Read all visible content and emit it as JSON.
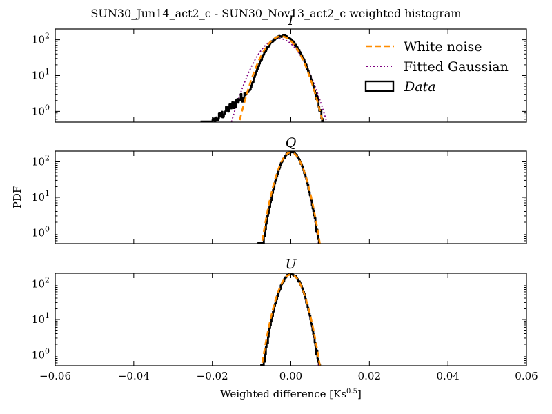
{
  "figure": {
    "suptitle": "SUN30_Jun14_act2_c - SUN30_Nov13_act2_c weighted histogram",
    "xlabel_main": "Weighted difference [Ks",
    "xlabel_sup": "0.5",
    "xlabel_end": "]",
    "ylabel": "PDF"
  },
  "colors": {
    "white_noise": "#ff8c00",
    "fitted_gaussian": "#800080",
    "data": "#000000"
  },
  "legend": {
    "location": "top-right of first panel",
    "white_noise": "White noise",
    "fitted_gaussian": "Fitted Gaussian",
    "data": "Data"
  },
  "chart_data": [
    {
      "type": "line",
      "title": "I",
      "scale_y": "log",
      "xlim": [
        -0.06,
        0.06
      ],
      "ylim": [
        0.5,
        200
      ],
      "ytick_base": "10",
      "ytick_exps": [
        "0",
        "1",
        "2"
      ],
      "series": [
        {
          "name": "White noise",
          "style": "dashed",
          "mu": -0.0025,
          "sigma": 0.0032,
          "peak": 125
        },
        {
          "name": "Fitted Gaussian",
          "style": "dotted",
          "mu": -0.003,
          "sigma": 0.0037,
          "peak": 108
        },
        {
          "name": "Data",
          "style": "step",
          "mu": -0.0022,
          "sigma": 0.0031,
          "peak": 128,
          "x_min": -0.023,
          "x_max": 0.0082,
          "left_tail_excess": true
        }
      ]
    },
    {
      "type": "line",
      "title": "Q",
      "scale_y": "log",
      "xlim": [
        -0.06,
        0.06
      ],
      "ylim": [
        0.5,
        200
      ],
      "ytick_base": "10",
      "ytick_exps": [
        "0",
        "1",
        "2"
      ],
      "series": [
        {
          "name": "White noise",
          "style": "dashed",
          "mu": 0.0,
          "sigma": 0.00215,
          "peak": 185
        },
        {
          "name": "Fitted Gaussian",
          "style": "dotted",
          "mu": 0.0,
          "sigma": 0.00205,
          "peak": 190
        },
        {
          "name": "Data",
          "style": "step",
          "mu": 0.0,
          "sigma": 0.00205,
          "peak": 190,
          "x_min": -0.0085,
          "x_max": 0.0072
        }
      ]
    },
    {
      "type": "line",
      "title": "U",
      "scale_y": "log",
      "xlim": [
        -0.06,
        0.06
      ],
      "ylim": [
        0.5,
        200
      ],
      "ytick_base": "10",
      "ytick_exps": [
        "0",
        "1",
        "2"
      ],
      "series": [
        {
          "name": "White noise",
          "style": "dashed",
          "mu": 0.0,
          "sigma": 0.00215,
          "peak": 185
        },
        {
          "name": "Fitted Gaussian",
          "style": "dotted",
          "mu": 0.0,
          "sigma": 0.00205,
          "peak": 190
        },
        {
          "name": "Data",
          "style": "step",
          "mu": 0.0,
          "sigma": 0.00205,
          "peak": 190,
          "x_min": -0.0078,
          "x_max": 0.0075
        }
      ]
    }
  ],
  "x_ticks": [
    "−0.06",
    "−0.04",
    "−0.02",
    "0.00",
    "0.02",
    "0.04",
    "0.06"
  ],
  "x_tick_values": [
    -0.06,
    -0.04,
    -0.02,
    0.0,
    0.02,
    0.04,
    0.06
  ]
}
